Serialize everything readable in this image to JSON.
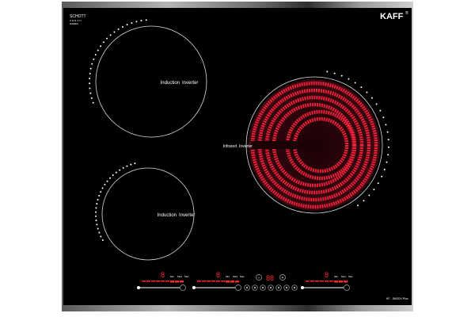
{
  "brand": {
    "logo": "KAFF",
    "registered": "®"
  },
  "glass": {
    "line1": "SCHOTT",
    "line2": "CERAN",
    "line3": "FINEBOX"
  },
  "model": "KF - SM3CH Plus",
  "zones": [
    {
      "label_left": "Induction",
      "label_right": "Inverter",
      "type": "induction"
    },
    {
      "label_left": "Induction",
      "label_right": "Inverter",
      "type": "induction"
    },
    {
      "label_left": "Infrared",
      "label_right": "Inverter",
      "type": "infrared",
      "active": true
    }
  ],
  "controls": {
    "zone_displays": [
      "8",
      "8",
      "8"
    ],
    "level_labels": [
      "Min",
      "Med",
      "Max"
    ],
    "timer_display": "88",
    "timer_minus": "−",
    "timer_plus": "+",
    "function_icons": [
      "lock-icon",
      "pause-icon",
      "boost-icon",
      "power-icon",
      "keep-warm-icon",
      "timer-icon",
      "child-lock-icon"
    ]
  },
  "colors": {
    "glass": "#000000",
    "heat": "#e8203a",
    "display": "#ff2a2a",
    "frame": "#8a8a8a"
  }
}
